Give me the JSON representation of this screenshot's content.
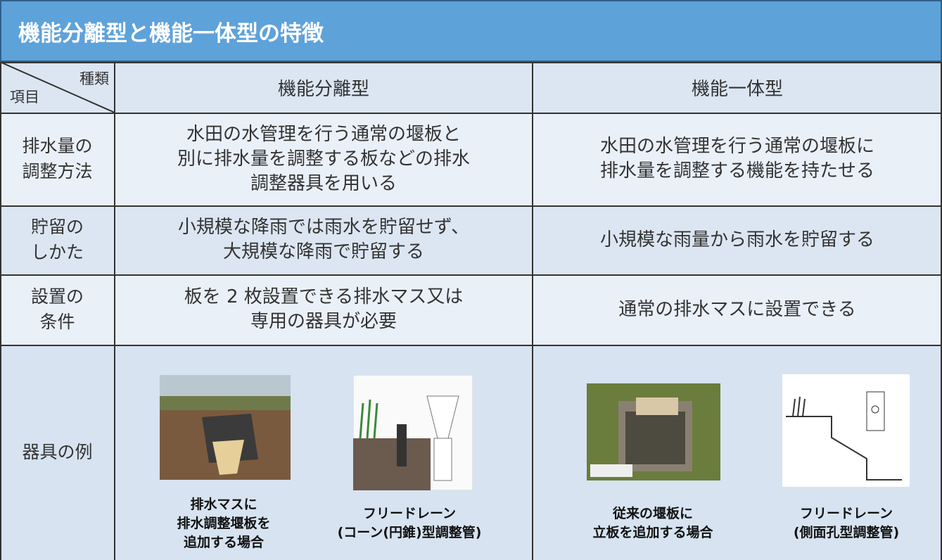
{
  "title": "機能分離型と機能一体型の特徴",
  "header": {
    "corner_top": "種類",
    "corner_bottom": "項目",
    "columns": [
      "機能分離型",
      "機能一体型"
    ]
  },
  "rows": [
    {
      "label": [
        "排水量の",
        "調整方法"
      ],
      "cells": [
        [
          "水田の水管理を行う通常の堰板と",
          "別に排水量を調整する板などの排水",
          "調整器具を用いる"
        ],
        [
          "水田の水管理を行う通常の堰板に",
          "排水量を調整する機能を持たせる"
        ]
      ]
    },
    {
      "label": [
        "貯留の",
        "しかた"
      ],
      "cells": [
        [
          "小規模な降雨では雨水を貯留せず、",
          "大規模な降雨で貯留する"
        ],
        [
          "小規模な雨量から雨水を貯留する"
        ]
      ]
    },
    {
      "label": [
        "設置の",
        "条件"
      ],
      "cells": [
        [
          "板を 2 枚設置できる排水マス又は",
          "専用の器具が必要"
        ],
        [
          "通常の排水マスに設置できる"
        ]
      ]
    }
  ],
  "examples": {
    "label": "器具の例",
    "items": [
      {
        "caption": [
          "排水マスに",
          "排水調整堰板を",
          "追加する場合"
        ]
      },
      {
        "caption": [
          "フリードレーン",
          "(コーン(円錐)型調整管)"
        ]
      },
      {
        "caption": [
          "従来の堰板に",
          "立板を追加する場合"
        ]
      },
      {
        "caption": [
          "フリードレーン",
          "(側面孔型調整管)"
        ]
      }
    ]
  }
}
